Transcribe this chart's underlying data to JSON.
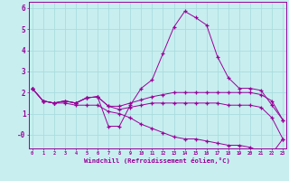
{
  "xlabel": "Windchill (Refroidissement éolien,°C)",
  "background_color": "#c8eef0",
  "grid_color": "#b0dde0",
  "line_color": "#990099",
  "x": [
    0,
    1,
    2,
    3,
    4,
    5,
    6,
    7,
    8,
    9,
    10,
    11,
    12,
    13,
    14,
    15,
    16,
    17,
    18,
    19,
    20,
    21,
    22,
    23
  ],
  "line1": [
    2.2,
    1.6,
    1.5,
    1.6,
    1.5,
    1.75,
    1.8,
    0.4,
    0.4,
    1.4,
    2.2,
    2.6,
    3.85,
    5.1,
    5.85,
    5.55,
    5.2,
    3.7,
    2.7,
    2.2,
    2.2,
    2.1,
    1.4,
    0.7
  ],
  "line2": [
    2.2,
    1.6,
    1.5,
    1.6,
    1.5,
    1.75,
    1.8,
    1.35,
    1.35,
    1.5,
    1.65,
    1.8,
    1.9,
    2.0,
    2.0,
    2.0,
    2.0,
    2.0,
    2.0,
    2.0,
    2.0,
    1.9,
    1.6,
    0.7
  ],
  "line3": [
    2.2,
    1.6,
    1.5,
    1.6,
    1.5,
    1.75,
    1.8,
    1.35,
    1.2,
    1.3,
    1.4,
    1.5,
    1.5,
    1.5,
    1.5,
    1.5,
    1.5,
    1.5,
    1.4,
    1.4,
    1.4,
    1.3,
    0.8,
    -0.2
  ],
  "line4": [
    2.2,
    1.6,
    1.5,
    1.5,
    1.4,
    1.4,
    1.4,
    1.1,
    1.0,
    0.8,
    0.5,
    0.3,
    0.1,
    -0.1,
    -0.2,
    -0.2,
    -0.3,
    -0.4,
    -0.5,
    -0.5,
    -0.6,
    -0.8,
    -0.9,
    -0.2
  ],
  "ylim": [
    -0.65,
    6.3
  ],
  "xlim": [
    -0.3,
    23.3
  ],
  "yticks": [
    6,
    5,
    4,
    3,
    2,
    1,
    0
  ],
  "ytick_labels": [
    "6",
    "5",
    "4",
    "3",
    "2",
    "1",
    "-0"
  ]
}
